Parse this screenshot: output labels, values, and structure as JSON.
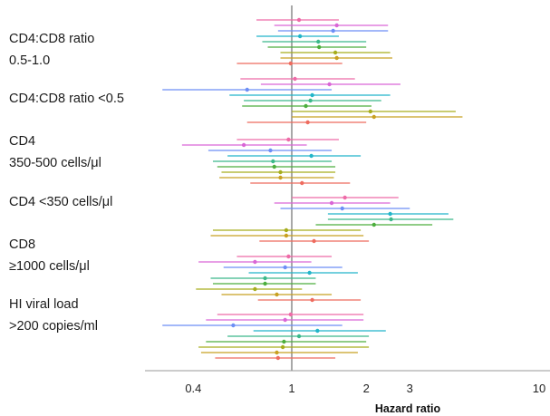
{
  "chart_data": {
    "type": "forest",
    "xlabel": "Hazard ratio",
    "xscale": "log",
    "xlim": [
      0.26,
      11
    ],
    "xticks": [
      0.4,
      1,
      2,
      3,
      10
    ],
    "xtick_labels": [
      "0.4",
      "1",
      "2",
      "3",
      "10"
    ],
    "reference_line": 1,
    "series_colors": [
      "#ee6aa7",
      "#d966d6",
      "#6c8ef5",
      "#22b5c9",
      "#3bb88a",
      "#4cae3d",
      "#a6ad1c",
      "#c8a020",
      "#ee6b5e"
    ],
    "groups": [
      {
        "label_lines": [
          "CD4:CD8 ratio",
          "0.5-1.0"
        ],
        "estimates": [
          {
            "hr": 1.07,
            "lo": 0.72,
            "hi": 1.55
          },
          {
            "hr": 1.52,
            "lo": 0.85,
            "hi": 2.45
          },
          {
            "hr": 1.47,
            "lo": 0.88,
            "hi": 2.45
          },
          {
            "hr": 1.08,
            "lo": 0.72,
            "hi": 1.55
          },
          {
            "hr": 1.28,
            "lo": 0.76,
            "hi": 2.0
          },
          {
            "hr": 1.29,
            "lo": 0.8,
            "hi": 2.0
          },
          {
            "hr": 1.5,
            "lo": 0.9,
            "hi": 2.5
          },
          {
            "hr": 1.52,
            "lo": 0.9,
            "hi": 2.55
          },
          {
            "hr": 0.99,
            "lo": 0.6,
            "hi": 1.6
          }
        ]
      },
      {
        "label_lines": [
          "CD4:CD8 ratio <0.5"
        ],
        "estimates": [
          {
            "hr": 1.03,
            "lo": 0.62,
            "hi": 1.8
          },
          {
            "hr": 1.42,
            "lo": 0.75,
            "hi": 2.75
          },
          {
            "hr": 0.66,
            "lo": 0.3,
            "hi": 1.45
          },
          {
            "hr": 1.21,
            "lo": 0.56,
            "hi": 2.5
          },
          {
            "hr": 1.19,
            "lo": 0.64,
            "hi": 2.3
          },
          {
            "hr": 1.14,
            "lo": 0.63,
            "hi": 2.1
          },
          {
            "hr": 2.08,
            "lo": 1.0,
            "hi": 4.6
          },
          {
            "hr": 2.15,
            "lo": 1.0,
            "hi": 4.9
          },
          {
            "hr": 1.16,
            "lo": 0.66,
            "hi": 2.0
          }
        ]
      },
      {
        "label_lines": [
          "CD4",
          "350-500 cells/μl"
        ],
        "estimates": [
          {
            "hr": 0.97,
            "lo": 0.6,
            "hi": 1.55
          },
          {
            "hr": 0.64,
            "lo": 0.36,
            "hi": 1.15
          },
          {
            "hr": 0.82,
            "lo": 0.46,
            "hi": 1.45
          },
          {
            "hr": 1.2,
            "lo": 0.55,
            "hi": 1.9
          },
          {
            "hr": 0.84,
            "lo": 0.48,
            "hi": 1.45
          },
          {
            "hr": 0.85,
            "lo": 0.5,
            "hi": 1.5
          },
          {
            "hr": 0.9,
            "lo": 0.52,
            "hi": 1.5
          },
          {
            "hr": 0.9,
            "lo": 0.51,
            "hi": 1.48
          },
          {
            "hr": 1.1,
            "lo": 0.68,
            "hi": 1.72
          }
        ]
      },
      {
        "label_lines": [
          "CD4 <350 cells/μl"
        ],
        "estimates": [
          {
            "hr": 1.64,
            "lo": 1.0,
            "hi": 2.7
          },
          {
            "hr": 1.45,
            "lo": 0.85,
            "hi": 2.5
          },
          {
            "hr": 1.6,
            "lo": 0.9,
            "hi": 3.0
          },
          {
            "hr": 2.5,
            "lo": 1.4,
            "hi": 4.3
          },
          {
            "hr": 2.52,
            "lo": 1.4,
            "hi": 4.5
          },
          {
            "hr": 2.15,
            "lo": 1.25,
            "hi": 3.7
          },
          {
            "hr": 0.95,
            "lo": 0.48,
            "hi": 1.9
          },
          {
            "hr": 0.95,
            "lo": 0.47,
            "hi": 1.95
          },
          {
            "hr": 1.23,
            "lo": 0.74,
            "hi": 2.05
          }
        ]
      },
      {
        "label_lines": [
          "CD8",
          "≥1000 cells/μl"
        ],
        "estimates": [
          {
            "hr": 0.97,
            "lo": 0.6,
            "hi": 1.45
          },
          {
            "hr": 0.71,
            "lo": 0.42,
            "hi": 1.2
          },
          {
            "hr": 0.94,
            "lo": 0.53,
            "hi": 1.6
          },
          {
            "hr": 1.18,
            "lo": 0.67,
            "hi": 1.85
          },
          {
            "hr": 0.78,
            "lo": 0.47,
            "hi": 1.25
          },
          {
            "hr": 0.78,
            "lo": 0.48,
            "hi": 1.25
          },
          {
            "hr": 0.71,
            "lo": 0.41,
            "hi": 1.1
          },
          {
            "hr": 0.87,
            "lo": 0.52,
            "hi": 1.45
          },
          {
            "hr": 1.21,
            "lo": 0.73,
            "hi": 1.9
          }
        ]
      },
      {
        "label_lines": [
          "HI viral load",
          ">200 copies/ml"
        ],
        "estimates": [
          {
            "hr": 0.99,
            "lo": 0.5,
            "hi": 1.95
          },
          {
            "hr": 0.94,
            "lo": 0.45,
            "hi": 1.95
          },
          {
            "hr": 0.58,
            "lo": 0.3,
            "hi": 1.6
          },
          {
            "hr": 1.27,
            "lo": 0.7,
            "hi": 2.4
          },
          {
            "hr": 1.07,
            "lo": 0.55,
            "hi": 2.05
          },
          {
            "hr": 0.93,
            "lo": 0.45,
            "hi": 2.0
          },
          {
            "hr": 0.92,
            "lo": 0.42,
            "hi": 2.05
          },
          {
            "hr": 0.87,
            "lo": 0.43,
            "hi": 1.85
          },
          {
            "hr": 0.88,
            "lo": 0.49,
            "hi": 1.5
          }
        ]
      }
    ]
  }
}
